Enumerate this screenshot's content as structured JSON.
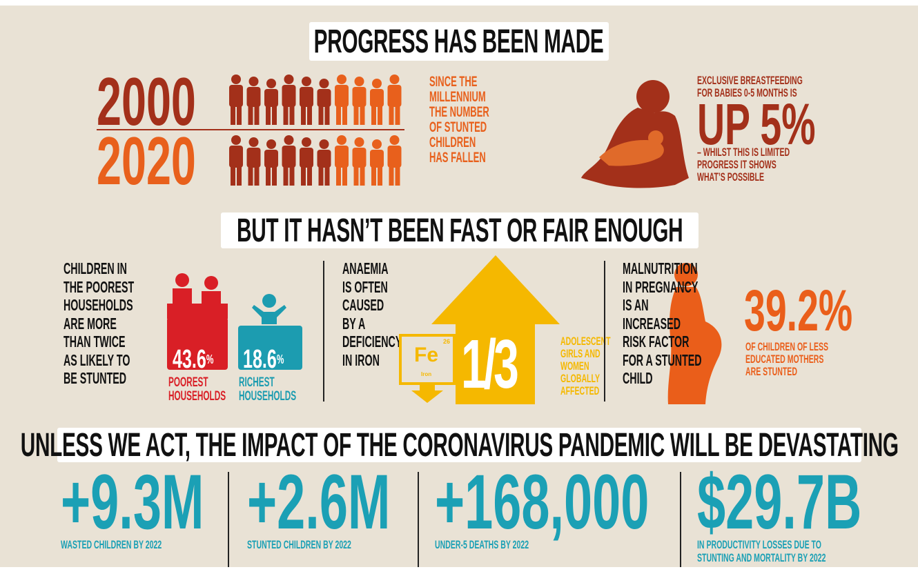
{
  "progress": {
    "heading": "PROGRESS HAS BEEN MADE",
    "year_before": "2000",
    "year_after": "2020",
    "stunting_note": [
      "SINCE THE",
      "MILLENNIUM",
      "THE NUMBER",
      "OF STUNTED",
      "CHILDREN",
      "HAS FALLEN"
    ],
    "breastfeeding": {
      "intro": [
        "EXCLUSIVE BREASTFEEDING",
        "FOR BABIES 0-5 MONTHS IS"
      ],
      "headline": "UP 5%",
      "note": [
        "– WHILST THIS IS LIMITED",
        "PROGRESS IT SHOWS",
        "WHAT’S POSSIBLE"
      ]
    }
  },
  "inequality": {
    "heading": "BUT IT HASN’T BEEN FAST OR FAIR ENOUGH",
    "poverty": {
      "text": [
        "CHILDREN IN",
        "THE POOREST",
        "HOUSEHOLDS",
        "ARE MORE",
        "THAN TWICE",
        "AS LIKELY TO",
        "BE STUNTED"
      ],
      "poorest": {
        "value": "43.6",
        "unit": "%",
        "label": [
          "POOREST",
          "HOUSEHOLDS"
        ]
      },
      "richest": {
        "value": "18.6",
        "unit": "%",
        "label": [
          "RICHEST",
          "HOUSEHOLDS"
        ]
      }
    },
    "anaemia": {
      "text": [
        "ANAEMIA",
        "IS OFTEN",
        "CAUSED",
        "BY A",
        "DEFICIENCY",
        "IN IRON"
      ],
      "element": {
        "symbol": "Fe",
        "number": "26",
        "name": "Iron"
      },
      "fraction": "1/3",
      "note": [
        "ADOLESCENT",
        "GIRLS AND",
        "WOMEN",
        "GLOBALLY",
        "AFFECTED"
      ]
    },
    "pregnancy": {
      "text": [
        "MALNUTRITION",
        "IN PREGNANCY",
        "IS AN",
        "INCREASED",
        "RISK FACTOR",
        "FOR A STUNTED",
        "CHILD"
      ],
      "value": "39.2%",
      "note": [
        "OF CHILDREN OF LESS",
        "EDUCATED MOTHERS",
        "ARE STUNTED"
      ]
    }
  },
  "pandemic": {
    "heading": "UNLESS WE ACT, THE IMPACT OF THE CORONAVIRUS PANDEMIC WILL BE DEVASTATING",
    "stats": [
      {
        "value": "+9.3M",
        "label": [
          "WASTED CHILDREN BY 2022"
        ]
      },
      {
        "value": "+2.6M",
        "label": [
          "STUNTED CHILDREN BY 2022"
        ]
      },
      {
        "value": "+168,000",
        "label": [
          "UNDER-5 DEATHS BY 2022"
        ]
      },
      {
        "value": "$29.7B",
        "label": [
          "IN PRODUCTIVITY LOSSES DUE TO",
          "STUNTING AND MORTALITY BY 2022"
        ]
      }
    ]
  }
}
